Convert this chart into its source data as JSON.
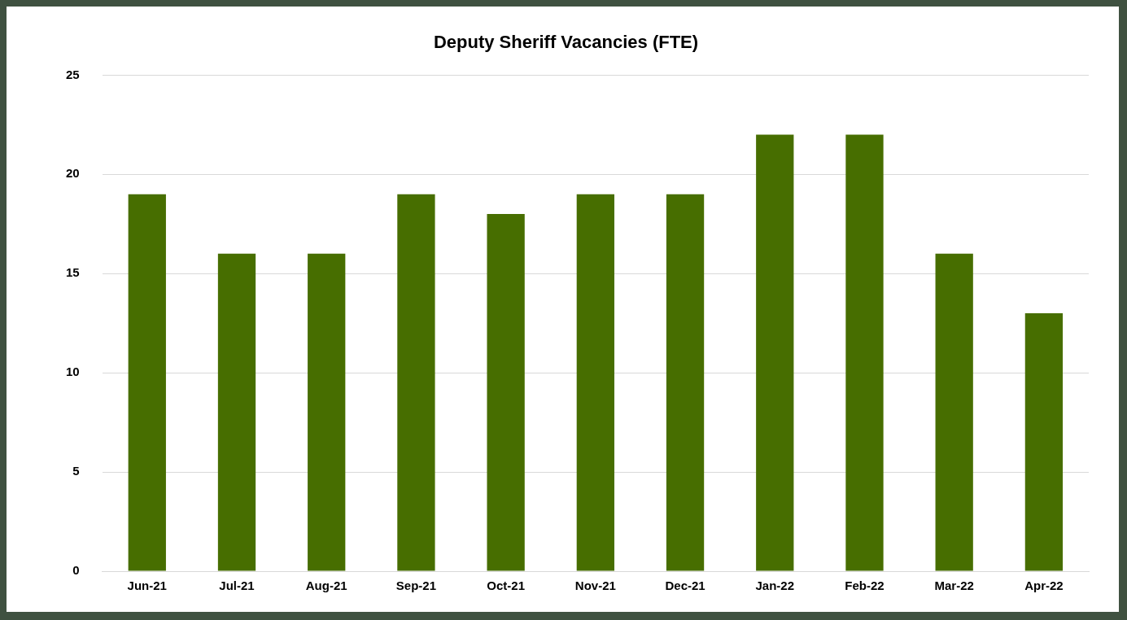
{
  "chart_data": {
    "type": "bar",
    "title": "Deputy Sheriff Vacancies (FTE)",
    "categories": [
      "Jun-21",
      "Jul-21",
      "Aug-21",
      "Sep-21",
      "Oct-21",
      "Nov-21",
      "Dec-21",
      "Jan-22",
      "Feb-22",
      "Mar-22",
      "Apr-22"
    ],
    "values": [
      19,
      16,
      16,
      19,
      18,
      19,
      19,
      22,
      22,
      16,
      13
    ],
    "color": "#476e00",
    "ylim": [
      0,
      25
    ],
    "yticks": [
      0,
      5,
      10,
      15,
      20,
      25
    ],
    "grid": "y"
  }
}
